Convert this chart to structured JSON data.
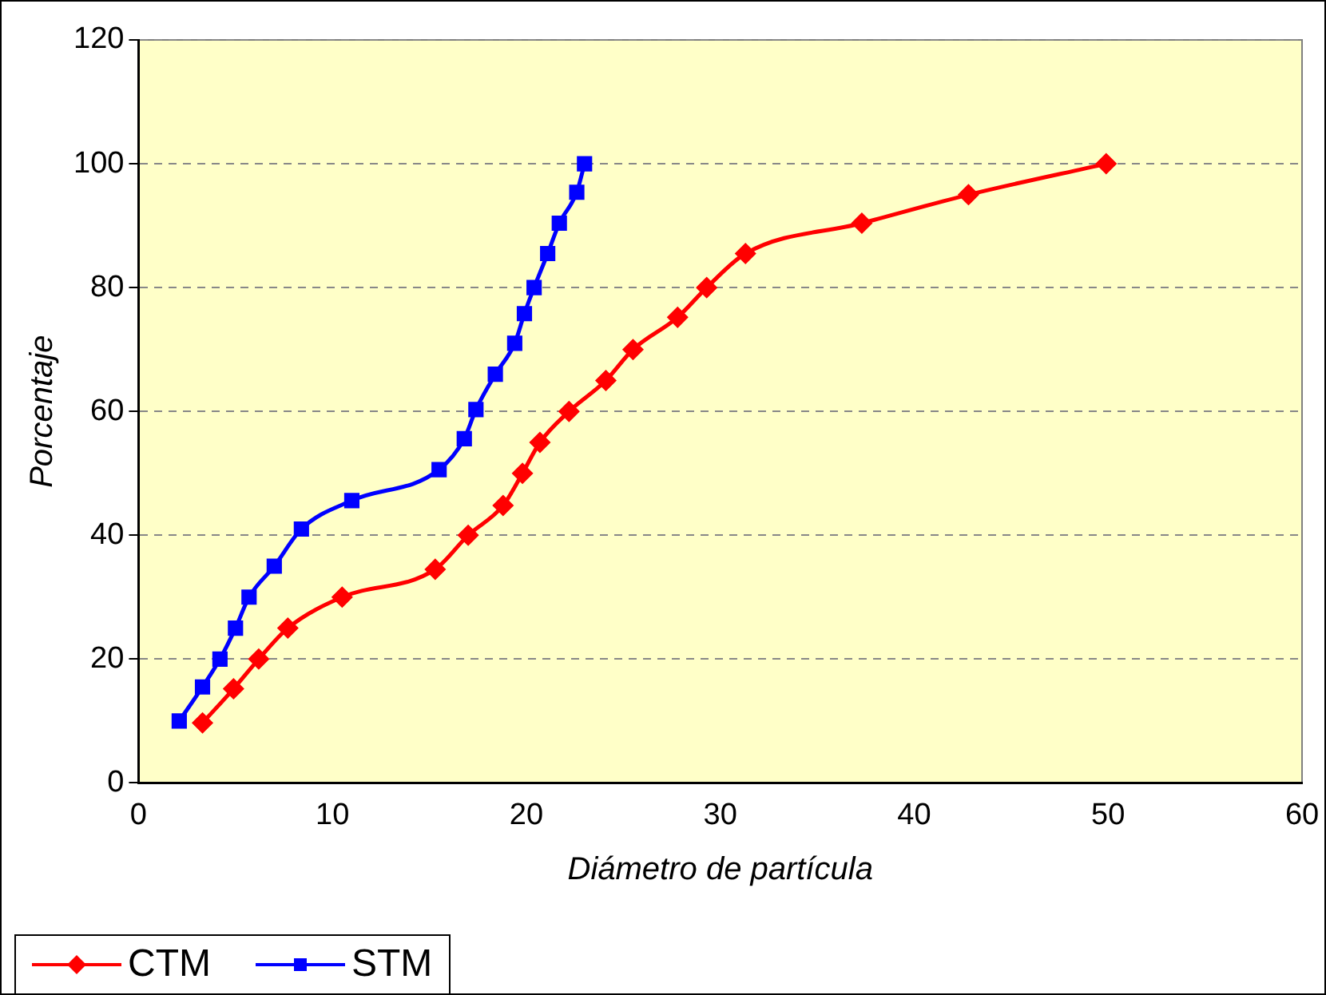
{
  "chart_data": {
    "type": "line",
    "xlabel": "Diámetro de partícula",
    "ylabel": "Porcentaje",
    "series": [
      {
        "name": "CTM",
        "color": "#ff0000",
        "marker": "diamond",
        "x": [
          3.3,
          4.9,
          6.2,
          7.7,
          10.5,
          15.3,
          17.0,
          18.8,
          19.8,
          20.7,
          22.2,
          24.1,
          25.5,
          27.8,
          29.3,
          31.3,
          37.3,
          42.8,
          49.9
        ],
        "values": [
          9.7,
          15.2,
          20,
          25,
          30,
          34.5,
          40,
          44.8,
          50,
          55,
          60,
          65,
          70,
          75.2,
          80,
          85.5,
          90.4,
          95,
          100
        ]
      },
      {
        "name": "STM",
        "color": "#0000ff",
        "marker": "square",
        "x": [
          2.1,
          3.3,
          4.2,
          5.0,
          5.7,
          7.0,
          8.4,
          11,
          15.5,
          16.8,
          17.4,
          18.4,
          19.4,
          19.9,
          20.4,
          21.1,
          21.7,
          22.6,
          23.0
        ],
        "values": [
          10,
          15.5,
          20,
          25,
          30,
          35,
          41,
          45.6,
          50.6,
          55.6,
          60.3,
          66,
          71,
          75.8,
          80,
          85.5,
          90.4,
          95.4,
          100
        ]
      }
    ],
    "xlim": [
      0,
      60
    ],
    "xticks": [
      0,
      10,
      20,
      30,
      40,
      50,
      60
    ],
    "ylim": [
      0,
      120
    ],
    "yticks": [
      0,
      20,
      40,
      60,
      80,
      100,
      120
    ],
    "grid": "y",
    "legend": "bottom left",
    "line_style": "solid"
  }
}
